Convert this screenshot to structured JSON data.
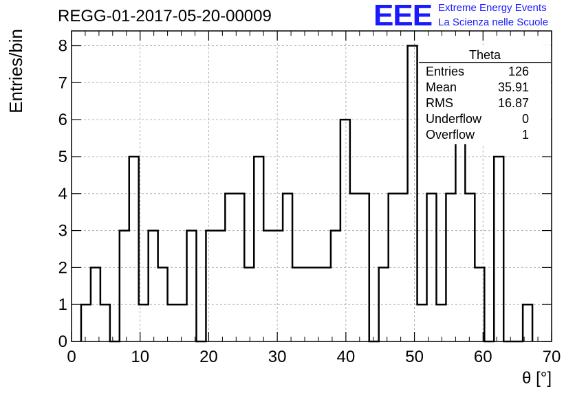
{
  "header": {
    "title": "REGG-01-2017-05-20-00009",
    "logo_text": "EEE",
    "logo_line1": "Extreme Energy Events",
    "logo_line2": "La Scienza nelle Scuole"
  },
  "stats": {
    "title": "Theta",
    "rows": [
      {
        "label": "Entries",
        "value": "126"
      },
      {
        "label": "Mean",
        "value": "35.91"
      },
      {
        "label": "RMS",
        "value": "16.87"
      },
      {
        "label": "Underflow",
        "value": "0"
      },
      {
        "label": "Overflow",
        "value": "1"
      }
    ]
  },
  "colors": {
    "logo": "#1a1aff",
    "line": "#000000",
    "grid": "#b0b0b0"
  },
  "chart_data": {
    "type": "bar",
    "style": "step-histogram",
    "title": "REGG-01-2017-05-20-00009",
    "xlabel": "θ [°]",
    "ylabel": "Entries/bin",
    "xlim": [
      0,
      70
    ],
    "ylim": [
      0,
      8.4
    ],
    "bin_width": 1.4,
    "x_bin_edges_start": 1.4,
    "xticks": [
      0,
      10,
      20,
      30,
      40,
      50,
      60,
      70
    ],
    "yticks": [
      0,
      1,
      2,
      3,
      4,
      5,
      6,
      7,
      8
    ],
    "grid": true,
    "values": [
      1,
      2,
      1,
      0,
      3,
      5,
      1,
      3,
      2,
      1,
      1,
      3,
      0,
      3,
      3,
      4,
      4,
      2,
      5,
      3,
      3,
      4,
      2,
      2,
      2,
      2,
      3,
      6,
      4,
      4,
      0,
      2,
      4,
      4,
      8,
      1,
      4,
      1,
      4,
      6,
      4,
      2,
      0,
      5,
      0,
      0,
      1
    ]
  }
}
